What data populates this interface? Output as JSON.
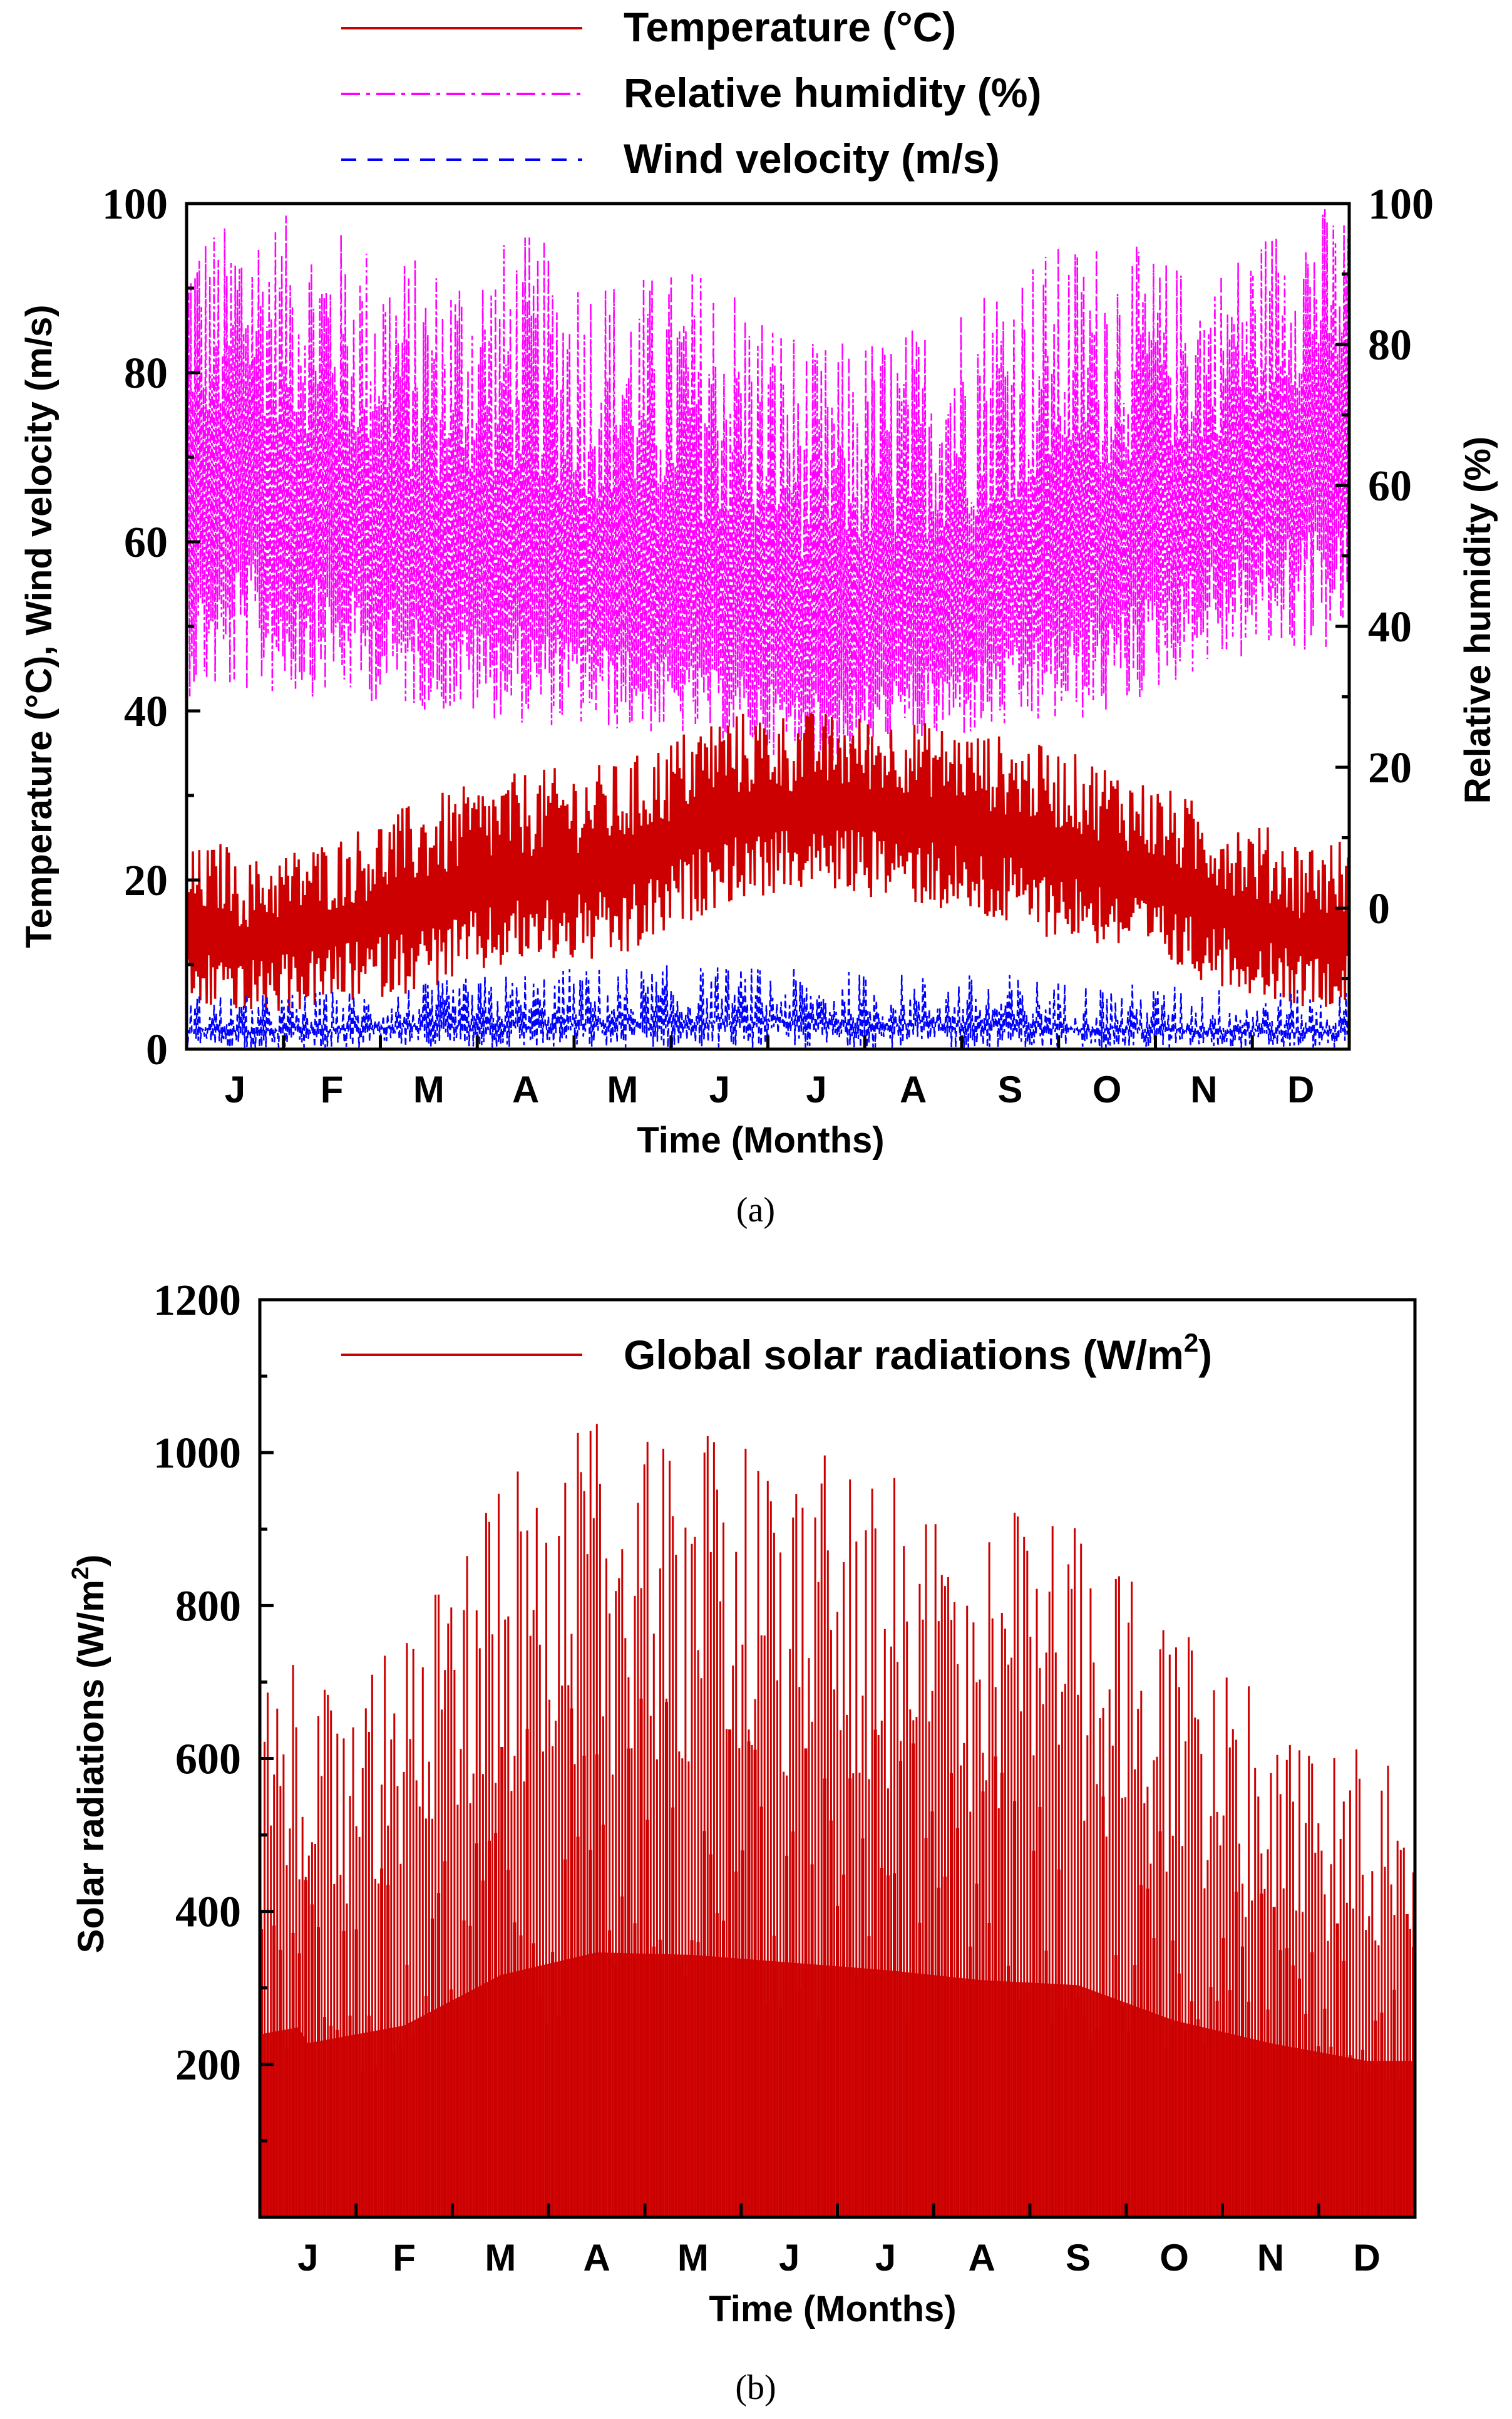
{
  "chart_data": [
    {
      "id": "a",
      "type": "line",
      "caption": "(a)",
      "xlabel": "Time (Months)",
      "ylabel_left": "Temperature (°C), Wind velocity (m/s)",
      "ylabel_right": "Relative humidity (%)",
      "categories": [
        "J",
        "F",
        "M",
        "A",
        "M",
        "J",
        "J",
        "A",
        "S",
        "O",
        "N",
        "D"
      ],
      "y_left": {
        "min": 0,
        "max": 100,
        "ticks": [
          "0",
          "20",
          "40",
          "60",
          "80",
          "100"
        ]
      },
      "y_right": {
        "min": -20,
        "max": 100,
        "ticks": [
          "0",
          "20",
          "40",
          "60",
          "80",
          "100"
        ]
      },
      "series": [
        {
          "name": "Temperature (°C)",
          "axis": "left",
          "color": "#cc0000",
          "line_style": "solid",
          "monthly_mean": [
            12,
            14,
            17,
            20,
            21,
            27,
            28,
            28,
            25,
            22,
            17,
            13
          ],
          "monthly_min": [
            3,
            5,
            7,
            10,
            10,
            17,
            19,
            17,
            14,
            12,
            8,
            5
          ],
          "monthly_max": [
            22,
            25,
            30,
            33,
            34,
            40,
            40,
            39,
            37,
            34,
            29,
            25
          ]
        },
        {
          "name": "Relative humidity (%)",
          "axis": "right",
          "color": "#ff00ff",
          "line_style": "dash-dot",
          "monthly_mean": [
            58,
            53,
            46,
            46,
            42,
            38,
            35,
            38,
            42,
            48,
            55,
            63
          ],
          "monthly_min": [
            30,
            30,
            28,
            26,
            25,
            24,
            20,
            23,
            25,
            27,
            34,
            36
          ],
          "monthly_max": [
            100,
            97,
            92,
            96,
            90,
            92,
            80,
            83,
            93,
            96,
            90,
            100
          ]
        },
        {
          "name": "Wind velocity (m/s)",
          "axis": "left",
          "color": "#0000ff",
          "line_style": "dashed",
          "monthly_mean": [
            2.2,
            2.3,
            2.8,
            2.9,
            3.0,
            3.3,
            3.2,
            3.0,
            2.7,
            2.4,
            2.2,
            2.1
          ],
          "monthly_max": [
            6.5,
            7.0,
            8.0,
            9.5,
            10.0,
            10.0,
            9.5,
            9.0,
            9.0,
            8.0,
            7.5,
            7.0
          ]
        }
      ]
    },
    {
      "id": "b",
      "type": "area",
      "caption": "(b)",
      "xlabel": "Time (Months)",
      "ylabel": "Solar radiations (W/m",
      "ylabel_sup": "2",
      "ylabel_close": ")",
      "categories": [
        "J",
        "F",
        "M",
        "A",
        "M",
        "J",
        "J",
        "A",
        "S",
        "O",
        "N",
        "D"
      ],
      "y": {
        "min": 0,
        "max": 1200,
        "ticks": [
          "200",
          "400",
          "600",
          "800",
          "1000",
          "1200"
        ]
      },
      "series": [
        {
          "name": "Global solar radiations (W/m",
          "name_sup": "2",
          "name_close": ")",
          "color": "#cc0000",
          "monthly_peak": [
            690,
            760,
            960,
            1050,
            1040,
            1010,
            980,
            940,
            920,
            780,
            690,
            620
          ]
        }
      ]
    }
  ]
}
